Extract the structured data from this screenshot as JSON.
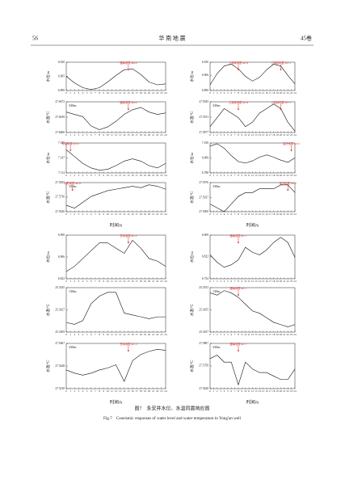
{
  "header": {
    "page": "56",
    "journal": "华 南 地 震",
    "volume": "45卷"
  },
  "caption": {
    "cn": "图7　永安井水位、水温同震响应图",
    "en": "Fig.7　Coseismic responses of water level and water temperature in Yong'an well"
  },
  "chart_data": [
    {
      "type": "line",
      "ylabel": "水位/m",
      "xlim": [
        0,
        24
      ],
      "xticks": [
        0,
        1,
        2,
        3,
        4,
        5,
        6,
        7,
        8,
        9,
        10,
        11,
        12,
        13,
        14,
        15,
        16,
        17,
        18,
        19,
        20,
        21,
        22,
        23,
        24
      ],
      "ylim": [
        6.89,
        6.92
      ],
      "yticks": [
        {
          "value": 6.92,
          "label": "6.920"
        },
        {
          "value": 6.905,
          "label": "6.905"
        },
        {
          "value": 6.89,
          "label": "6.890"
        }
      ],
      "x": [
        0,
        2,
        4,
        6,
        8,
        10,
        12,
        14,
        16,
        18,
        20,
        22,
        24
      ],
      "values": [
        6.905,
        6.898,
        6.893,
        6.891,
        6.893,
        6.899,
        6.906,
        6.912,
        6.913,
        6.907,
        6.899,
        6.896,
        6.897
      ],
      "annotations": [
        {
          "text": "缅甸地震 M6.9",
          "x": 15
        }
      ]
    },
    {
      "type": "line",
      "ylabel": "水温/℃",
      "note": "330m",
      "xlim": [
        0,
        24
      ],
      "xticks": [
        0,
        1,
        2,
        3,
        4,
        5,
        6,
        7,
        8,
        9,
        10,
        11,
        12,
        13,
        14,
        15,
        16,
        17,
        18,
        19,
        20,
        21,
        22,
        23,
        24
      ],
      "ylim": [
        27.6606,
        27.6672
      ],
      "yticks": [
        {
          "value": 27.6672,
          "label": "27.6672"
        },
        {
          "value": 27.6639,
          "label": "27.6639"
        },
        {
          "value": 27.6606,
          "label": "27.6606"
        }
      ],
      "x": [
        0,
        2,
        4,
        6,
        8,
        10,
        12,
        14,
        16,
        18,
        20,
        22,
        24
      ],
      "values": [
        27.665,
        27.6645,
        27.664,
        27.662,
        27.6612,
        27.6618,
        27.663,
        27.6645,
        27.6655,
        27.666,
        27.665,
        27.6645,
        27.6648
      ],
      "annotations": [
        {
          "text": "缅甸地震 M6.9",
          "x": 15
        }
      ]
    },
    {
      "type": "line",
      "ylabel": "水位/m",
      "xlim": [
        0,
        24
      ],
      "xticks": [
        0,
        1,
        2,
        3,
        4,
        5,
        6,
        7,
        8,
        9,
        10,
        11,
        12,
        13,
        14,
        15,
        16,
        17,
        18,
        19,
        20,
        21,
        22,
        23,
        24
      ],
      "ylim": [
        7.114,
        7.18
      ],
      "yticks": [
        {
          "value": 7.18,
          "label": "7.180"
        },
        {
          "value": 7.147,
          "label": "7.147"
        },
        {
          "value": 7.114,
          "label": "7.114"
        }
      ],
      "x": [
        0,
        2,
        4,
        6,
        8,
        10,
        12,
        14,
        16,
        18,
        20,
        22,
        24
      ],
      "values": [
        7.165,
        7.15,
        7.135,
        7.125,
        7.12,
        7.122,
        7.13,
        7.14,
        7.145,
        7.14,
        7.13,
        7.125,
        7.135
      ],
      "annotations": [
        {
          "text": "印尼地震 M7.0",
          "x": 1
        }
      ]
    },
    {
      "type": "line",
      "ylabel": "水温/℃",
      "note": "330m",
      "xlabel": "时间/h",
      "xlim": [
        0,
        24
      ],
      "xticks": [
        0,
        1,
        2,
        3,
        4,
        5,
        6,
        7,
        8,
        9,
        10,
        11,
        12,
        13,
        14,
        15,
        16,
        17,
        18,
        19,
        20,
        21,
        22,
        23,
        24
      ],
      "ylim": [
        27.5636,
        27.5835
      ],
      "yticks": [
        {
          "value": 27.5835,
          "label": "27.5835"
        },
        {
          "value": 27.5736,
          "label": "27.5736"
        },
        {
          "value": 27.5636,
          "label": "27.5636"
        }
      ],
      "x": [
        0,
        2,
        4,
        6,
        8,
        10,
        12,
        14,
        16,
        18,
        20,
        22,
        24
      ],
      "values": [
        27.568,
        27.566,
        27.57,
        27.574,
        27.576,
        27.578,
        27.579,
        27.58,
        27.581,
        27.58,
        27.582,
        27.581,
        27.579
      ],
      "annotations": [
        {
          "text": "印尼地震 M7.0",
          "x": 1.5
        }
      ]
    },
    {
      "type": "line",
      "ylabel": "水位/m",
      "xlim": [
        0,
        24
      ],
      "xticks": [
        0,
        1,
        2,
        3,
        4,
        5,
        6,
        7,
        8,
        9,
        10,
        11,
        12,
        13,
        14,
        15,
        16,
        17,
        18,
        19,
        20,
        21,
        22,
        23,
        24
      ],
      "ylim": [
        6.822,
        6.99
      ],
      "yticks": [
        {
          "value": 6.99,
          "label": "6.990"
        },
        {
          "value": 6.906,
          "label": "6.906"
        },
        {
          "value": 6.822,
          "label": "6.822"
        }
      ],
      "x": [
        0,
        2,
        4,
        6,
        8,
        10,
        12,
        14,
        16,
        18,
        20,
        22,
        24
      ],
      "values": [
        6.85,
        6.87,
        6.9,
        6.93,
        6.96,
        6.96,
        6.94,
        6.92,
        6.97,
        6.94,
        6.9,
        6.89,
        6.87
      ],
      "annotations": [
        {
          "text": "日本地震 M7.3",
          "x": 15
        }
      ]
    },
    {
      "type": "line",
      "ylabel": "水温/℃",
      "note": "130m",
      "xlim": [
        0,
        24
      ],
      "xticks": [
        0,
        1,
        2,
        3,
        4,
        5,
        6,
        7,
        8,
        9,
        10,
        11,
        12,
        13,
        14,
        15,
        16,
        17,
        18,
        19,
        20,
        21,
        22,
        23,
        24
      ],
      "ylim": [
        25.3309,
        25.3545
      ],
      "yticks": [
        {
          "value": 25.3545,
          "label": "25.3545"
        },
        {
          "value": 25.3427,
          "label": "25.3427"
        },
        {
          "value": 25.3309,
          "label": "25.3309"
        }
      ],
      "x": [
        0,
        2,
        4,
        6,
        8,
        10,
        12,
        14,
        16,
        18,
        20,
        22,
        24
      ],
      "values": [
        25.336,
        25.335,
        25.337,
        25.346,
        25.35,
        25.352,
        25.352,
        25.341,
        25.34,
        25.339,
        25.338,
        25.339,
        25.339
      ],
      "annotations": []
    },
    {
      "type": "line",
      "ylabel": "水温/℃",
      "note": "330m",
      "xlabel": "时间/h",
      "xlim": [
        0,
        24
      ],
      "xticks": [
        0,
        1,
        2,
        3,
        4,
        5,
        6,
        7,
        8,
        9,
        10,
        11,
        12,
        13,
        14,
        15,
        16,
        17,
        18,
        19,
        20,
        21,
        22,
        23,
        24
      ],
      "ylim": [
        27.523,
        27.5667
      ],
      "yticks": [
        {
          "value": 27.5667,
          "label": "27.5667"
        },
        {
          "value": 27.5448,
          "label": "27.5448"
        },
        {
          "value": 27.523,
          "label": "27.5230"
        }
      ],
      "x": [
        0,
        2,
        4,
        6,
        8,
        10,
        12,
        14,
        16,
        18,
        20,
        22,
        24
      ],
      "values": [
        27.541,
        27.538,
        27.536,
        27.538,
        27.541,
        27.543,
        27.546,
        27.53,
        27.55,
        27.556,
        27.559,
        27.561,
        27.56
      ],
      "annotations": [
        {
          "text": "日本地震 M7.3",
          "x": 15
        }
      ]
    },
    {
      "type": "line",
      "ylabel": "水位/m",
      "xlim": [
        0,
        24
      ],
      "xticks": [
        0,
        1,
        2,
        3,
        4,
        5,
        6,
        7,
        8,
        9,
        10,
        11,
        12,
        13,
        14,
        15,
        16,
        17,
        18,
        19,
        20,
        21,
        22,
        23,
        24
      ],
      "ylim": [
        6.89,
        6.92
      ],
      "yticks": [
        {
          "value": 6.92,
          "label": "6.920"
        },
        {
          "value": 6.906,
          "label": "6.906"
        },
        {
          "value": 6.89,
          "label": "6.890"
        }
      ],
      "x": [
        0,
        2,
        4,
        6,
        8,
        10,
        12,
        14,
        16,
        18,
        20,
        22,
        24
      ],
      "values": [
        6.896,
        6.908,
        6.916,
        6.918,
        6.913,
        6.905,
        6.9,
        6.904,
        6.912,
        6.918,
        6.916,
        6.906,
        6.897
      ],
      "annotations": [
        {
          "text": "土耳其地震 M7.8",
          "x": 8
        },
        {
          "text": "土耳其地震 M7.5",
          "x": 20
        }
      ]
    },
    {
      "type": "line",
      "ylabel": "水温/℃",
      "note": "330m",
      "xlim": [
        0,
        24
      ],
      "xticks": [
        0,
        1,
        2,
        3,
        4,
        5,
        6,
        7,
        8,
        9,
        10,
        11,
        12,
        13,
        14,
        15,
        16,
        17,
        18,
        19,
        20,
        21,
        22,
        23,
        24
      ],
      "ylim": [
        27.5877,
        27.5945
      ],
      "yticks": [
        {
          "value": 27.5945,
          "label": "27.5945"
        },
        {
          "value": 27.5911,
          "label": "27.5911"
        },
        {
          "value": 27.5877,
          "label": "27.5877"
        }
      ],
      "x": [
        0,
        2,
        4,
        6,
        8,
        10,
        12,
        14,
        16,
        18,
        20,
        22,
        24
      ],
      "values": [
        27.589,
        27.591,
        27.593,
        27.592,
        27.591,
        27.589,
        27.59,
        27.592,
        27.593,
        27.594,
        27.593,
        27.59,
        27.588
      ],
      "annotations": [
        {
          "text": "土耳其地震 M7.8",
          "x": 8
        },
        {
          "text": "土耳其地震 M7.5",
          "x": 20
        }
      ]
    },
    {
      "type": "line",
      "ylabel": "水位/m",
      "xlim": [
        0,
        24
      ],
      "xticks": [
        0,
        1,
        2,
        3,
        4,
        5,
        6,
        7,
        8,
        9,
        10,
        11,
        12,
        13,
        14,
        15,
        16,
        17,
        18,
        19,
        20,
        21,
        22,
        23,
        24
      ],
      "ylim": [
        6.788,
        7.19
      ],
      "yticks": [
        {
          "value": 7.19,
          "label": "7.190"
        },
        {
          "value": 6.989,
          "label": "6.989"
        },
        {
          "value": 6.788,
          "label": "6.788"
        }
      ],
      "x": [
        0,
        2,
        4,
        6,
        8,
        10,
        12,
        14,
        16,
        18,
        20,
        22,
        24
      ],
      "values": [
        7.15,
        7.18,
        7.12,
        7.02,
        6.94,
        6.92,
        6.95,
        7.0,
        7.03,
        7.0,
        6.96,
        6.93,
        6.99
      ],
      "annotations": [
        {
          "text": "斐济地震 M7.0",
          "x": 23
        }
      ]
    },
    {
      "type": "line",
      "ylabel": "水温/℃",
      "note": "330m",
      "xlabel": "时间/h",
      "xlim": [
        0,
        24
      ],
      "xticks": [
        0,
        1,
        2,
        3,
        4,
        5,
        6,
        7,
        8,
        9,
        10,
        11,
        12,
        13,
        14,
        15,
        16,
        17,
        18,
        19,
        20,
        21,
        22,
        23,
        24
      ],
      "ylim": [
        27.59,
        27.5976
      ],
      "yticks": [
        {
          "value": 27.5976,
          "label": "27.5976"
        },
        {
          "value": 27.5937,
          "label": "27.5937"
        },
        {
          "value": 27.59,
          "label": "27.5900"
        }
      ],
      "x": [
        0,
        2,
        4,
        6,
        8,
        10,
        12,
        14,
        16,
        18,
        20,
        22,
        24
      ],
      "values": [
        27.592,
        27.591,
        27.59,
        27.592,
        27.594,
        27.595,
        27.595,
        27.596,
        27.596,
        27.596,
        27.597,
        27.597,
        27.595
      ],
      "annotations": [
        {
          "text": "斐济地震 M7.0",
          "x": 22
        }
      ]
    },
    {
      "type": "line",
      "ylabel": "水位/m",
      "xlim": [
        0,
        24
      ],
      "xticks": [
        0,
        1,
        2,
        3,
        4,
        5,
        6,
        7,
        8,
        9,
        10,
        11,
        12,
        13,
        14,
        15,
        16,
        17,
        18,
        19,
        20,
        21,
        22,
        23,
        24
      ],
      "ylim": [
        6.734,
        6.909
      ],
      "yticks": [
        {
          "value": 6.909,
          "label": "6.909"
        },
        {
          "value": 6.822,
          "label": "6.822"
        },
        {
          "value": 6.734,
          "label": "6.734"
        }
      ],
      "x": [
        0,
        2,
        4,
        6,
        8,
        10,
        12,
        14,
        16,
        18,
        20,
        22,
        24
      ],
      "values": [
        6.83,
        6.8,
        6.78,
        6.79,
        6.81,
        6.86,
        6.84,
        6.83,
        6.85,
        6.88,
        6.9,
        6.88,
        6.82
      ],
      "annotations": [
        {
          "text": "缅甸地震 M7.7",
          "x": 8
        }
      ]
    },
    {
      "type": "line",
      "ylabel": "水温/℃",
      "note": "130m",
      "xlim": [
        0,
        24
      ],
      "xticks": [
        0,
        1,
        2,
        3,
        4,
        5,
        6,
        7,
        8,
        9,
        10,
        11,
        12,
        13,
        14,
        15,
        16,
        17,
        18,
        19,
        20,
        21,
        22,
        23,
        24
      ],
      "ylim": [
        25.3357,
        25.3553
      ],
      "yticks": [
        {
          "value": 25.3553,
          "label": "25.3553"
        },
        {
          "value": 25.3455,
          "label": "25.3455"
        },
        {
          "value": 25.3357,
          "label": "25.3357"
        }
      ],
      "x": [
        0,
        2,
        4,
        6,
        8,
        10,
        12,
        14,
        16,
        18,
        20,
        22,
        24
      ],
      "values": [
        25.353,
        25.352,
        25.354,
        25.353,
        25.351,
        25.348,
        25.345,
        25.344,
        25.342,
        25.34,
        25.339,
        25.338,
        25.339
      ],
      "annotations": [
        {
          "text": "缅甸地震 M7.7",
          "x": 8
        }
      ]
    },
    {
      "type": "line",
      "ylabel": "水温/℃",
      "note": "330m",
      "xlabel": "时间/h",
      "xlim": [
        0,
        24
      ],
      "xticks": [
        0,
        1,
        2,
        3,
        4,
        5,
        6,
        7,
        8,
        9,
        10,
        11,
        12,
        13,
        14,
        15,
        16,
        17,
        18,
        19,
        20,
        21,
        22,
        23,
        24
      ],
      "ylim": [
        27.5628,
        27.5887
      ],
      "yticks": [
        {
          "value": 27.5887,
          "label": "27.5887"
        },
        {
          "value": 27.5758,
          "label": "27.5758"
        },
        {
          "value": 27.5628,
          "label": "27.5628"
        }
      ],
      "x": [
        0,
        2,
        4,
        6,
        8,
        10,
        12,
        14,
        16,
        18,
        20,
        22,
        24
      ],
      "values": [
        27.58,
        27.582,
        27.578,
        27.578,
        27.565,
        27.578,
        27.574,
        27.572,
        27.572,
        27.57,
        27.568,
        27.568,
        27.574
      ],
      "annotations": [
        {
          "text": "缅甸地震 M7.7",
          "x": 8
        }
      ]
    }
  ]
}
